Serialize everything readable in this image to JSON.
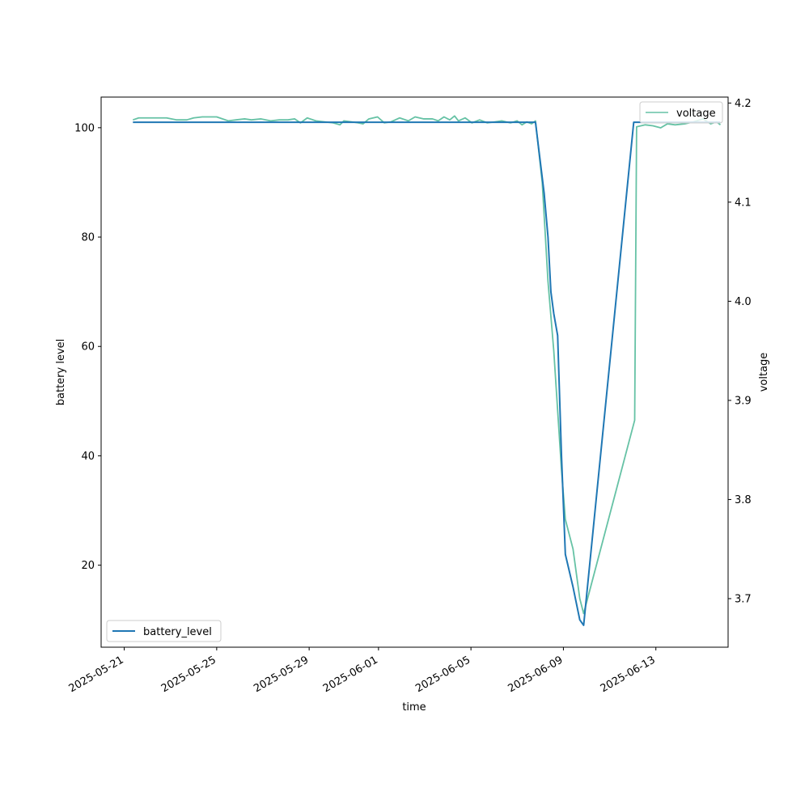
{
  "chart_data": {
    "type": "line",
    "xlabel": "time",
    "ylabel": "battery level",
    "y2label": "voltage",
    "xlim": [
      "2025-05-20 00:00",
      "2025-06-16 03:00"
    ],
    "ylim": [
      5,
      105.6
    ],
    "y2lim": [
      3.651,
      4.206
    ],
    "x_ticks": [
      "2025-05-21",
      "2025-05-25",
      "2025-05-29",
      "2025-06-01",
      "2025-06-05",
      "2025-06-09",
      "2025-06-13"
    ],
    "y_ticks": [
      20,
      40,
      60,
      80,
      100
    ],
    "y2_ticks": [
      "3.7",
      "3.8",
      "3.9",
      "4.0",
      "4.1",
      "4.2"
    ],
    "legend_left": {
      "label": "battery_level",
      "placement": "lower-left"
    },
    "legend_right": {
      "label": "voltage",
      "placement": "upper-right"
    },
    "colors": {
      "battery_level": "#1f77b4",
      "voltage": "#66c2a5"
    },
    "series": [
      {
        "name": "battery_level",
        "axis": "left",
        "x": [
          "2025-05-21 09:00",
          "2025-06-07 19:00",
          "2025-06-08 04:00",
          "2025-06-08 08:00",
          "2025-06-08 11:00",
          "2025-06-08 14:00",
          "2025-06-08 18:00",
          "2025-06-08 22:00",
          "2025-06-09 02:00",
          "2025-06-09 10:00",
          "2025-06-09 17:00",
          "2025-06-09 21:00",
          "2025-06-12 01:00",
          "2025-06-15 19:00"
        ],
        "values": [
          101,
          101,
          88,
          80,
          70,
          66,
          62,
          40,
          22,
          16,
          10,
          9,
          101,
          101
        ]
      },
      {
        "name": "voltage",
        "axis": "right",
        "x": [
          "2025-05-21 09:00",
          "2025-05-21 15:00",
          "2025-05-21 22:00",
          "2025-05-22 08:00",
          "2025-05-22 20:00",
          "2025-05-23 06:00",
          "2025-05-23 17:00",
          "2025-05-24 00:00",
          "2025-05-24 09:00",
          "2025-05-24 16:00",
          "2025-05-25 00:00",
          "2025-05-25 12:00",
          "2025-05-25 20:00",
          "2025-05-26 05:00",
          "2025-05-26 12:00",
          "2025-05-26 22:00",
          "2025-05-27 08:00",
          "2025-05-27 17:00",
          "2025-05-28 02:00",
          "2025-05-28 09:00",
          "2025-05-28 15:00",
          "2025-05-28 22:00",
          "2025-05-29 07:00",
          "2025-05-29 16:00",
          "2025-05-30 01:00",
          "2025-05-30 08:00",
          "2025-05-30 12:00",
          "2025-05-30 20:00",
          "2025-05-31 03:00",
          "2025-05-31 08:00",
          "2025-05-31 14:00",
          "2025-05-31 23:00",
          "2025-06-01 06:00",
          "2025-06-01 13:00",
          "2025-06-01 22:00",
          "2025-06-02 07:00",
          "2025-06-02 14:00",
          "2025-06-02 23:00",
          "2025-06-03 08:00",
          "2025-06-03 14:00",
          "2025-06-03 20:00",
          "2025-06-04 02:00",
          "2025-06-04 07:00",
          "2025-06-04 11:00",
          "2025-06-04 18:00",
          "2025-06-05 01:00",
          "2025-06-05 09:00",
          "2025-06-05 17:00",
          "2025-06-06 01:00",
          "2025-06-06 08:00",
          "2025-06-06 17:00",
          "2025-06-07 00:00",
          "2025-06-07 05:00",
          "2025-06-07 10:00",
          "2025-06-07 15:00",
          "2025-06-07 19:00",
          "2025-06-08 02:00",
          "2025-06-08 08:00",
          "2025-06-08 14:00",
          "2025-06-08 22:00",
          "2025-06-09 02:00",
          "2025-06-09 10:00",
          "2025-06-09 17:00",
          "2025-06-09 21:00",
          "2025-06-12 02:00",
          "2025-06-12 04:00",
          "2025-06-12 13:00",
          "2025-06-12 21:00",
          "2025-06-13 05:00",
          "2025-06-13 12:00",
          "2025-06-13 20:00",
          "2025-06-14 06:00",
          "2025-06-14 15:00",
          "2025-06-15 01:00",
          "2025-06-15 09:00",
          "2025-06-15 15:00",
          "2025-06-15 19:00"
        ],
        "values": [
          4.183,
          4.185,
          4.185,
          4.185,
          4.185,
          4.183,
          4.183,
          4.185,
          4.186,
          4.186,
          4.186,
          4.182,
          4.183,
          4.184,
          4.183,
          4.184,
          4.182,
          4.183,
          4.183,
          4.184,
          4.18,
          4.185,
          4.182,
          4.181,
          4.18,
          4.178,
          4.182,
          4.181,
          4.18,
          4.179,
          4.184,
          4.186,
          4.18,
          4.181,
          4.185,
          4.182,
          4.186,
          4.184,
          4.184,
          4.182,
          4.186,
          4.183,
          4.187,
          4.182,
          4.185,
          4.18,
          4.183,
          4.18,
          4.181,
          4.182,
          4.18,
          4.182,
          4.178,
          4.181,
          4.179,
          4.182,
          4.12,
          4.02,
          3.95,
          3.83,
          3.78,
          3.75,
          3.7,
          3.685,
          3.88,
          4.176,
          4.178,
          4.177,
          4.175,
          4.179,
          4.178,
          4.179,
          4.181,
          4.184,
          4.179,
          4.181,
          4.178
        ]
      }
    ]
  }
}
